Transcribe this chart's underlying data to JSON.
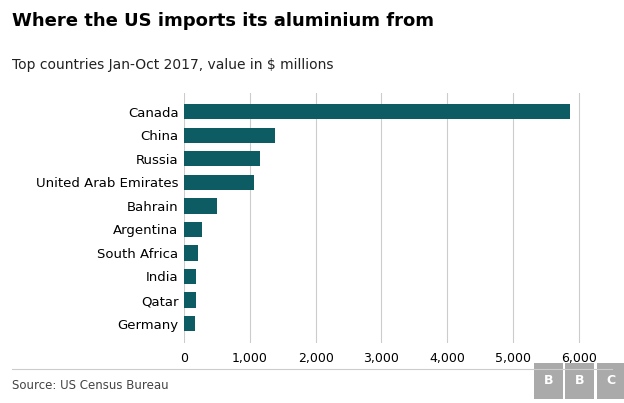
{
  "title": "Where the US imports its aluminium from",
  "subtitle": "Top countries Jan-Oct 2017, value in $ millions",
  "source": "Source: US Census Bureau",
  "countries": [
    "Germany",
    "Qatar",
    "India",
    "South Africa",
    "Argentina",
    "Bahrain",
    "United Arab Emirates",
    "Russia",
    "China",
    "Canada"
  ],
  "values": [
    160,
    175,
    185,
    210,
    280,
    500,
    1070,
    1150,
    1380,
    5870
  ],
  "bar_color": "#0d5c63",
  "background_color": "#ffffff",
  "xlim": [
    0,
    6500
  ],
  "xticks": [
    0,
    1000,
    2000,
    3000,
    4000,
    5000,
    6000
  ],
  "title_fontsize": 13,
  "subtitle_fontsize": 10,
  "tick_fontsize": 9,
  "label_fontsize": 9.5,
  "source_fontsize": 8.5,
  "bbc_color": "#bbbbbb"
}
